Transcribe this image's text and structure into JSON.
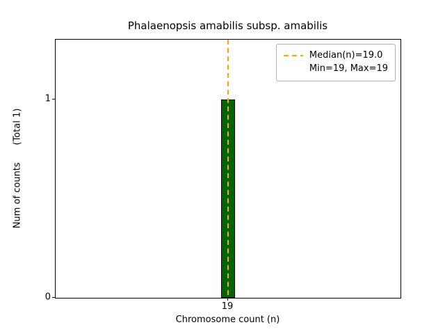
{
  "figure": {
    "title": "Phalaenopsis amabilis subsp. amabilis",
    "xlabel": "Chromosome count (n)",
    "ylabel": "Num of counts      (Total 1)"
  },
  "legend": {
    "median_label": "Median(n)=19.0",
    "minmax_label": "Min=19, Max=19"
  },
  "chart_data": {
    "type": "bar",
    "title": "Phalaenopsis amabilis subsp. amabilis",
    "xlabel": "Chromosome count (n)",
    "ylabel": "Num of counts (Total 1)",
    "total_counts": 1,
    "x": [
      19
    ],
    "categories": [
      "19"
    ],
    "values": [
      1
    ],
    "bar_width": 0.08,
    "xlim": [
      18,
      20
    ],
    "ylim": [
      0,
      1.3
    ],
    "xticks": [
      {
        "label": "19",
        "value": 19
      }
    ],
    "yticks": [
      {
        "label": "0",
        "value": 0
      },
      {
        "label": "1",
        "value": 1
      }
    ],
    "median": 19.0,
    "min": 19,
    "max": 19,
    "bar_color": "#006400",
    "bar_edge_color": "#000000",
    "median_line_color": "#FFA500",
    "median_line_style": "dashed",
    "legend_entries": [
      "Median(n)=19.0",
      "Min=19, Max=19"
    ],
    "legend_position": "upper right",
    "grid": false
  }
}
